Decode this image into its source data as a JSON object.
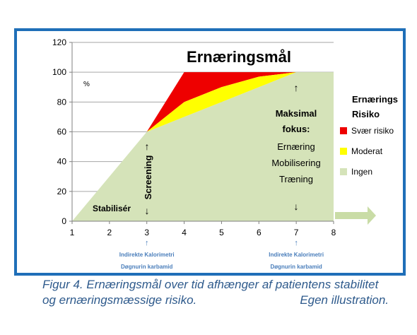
{
  "chart_data": {
    "type": "area",
    "title": "Ernæringsmål",
    "x_ticks": [
      "1",
      "2",
      "3",
      "4",
      "5",
      "6",
      "7",
      "8"
    ],
    "y_ticks": [
      "0",
      "20",
      "40",
      "60",
      "80",
      "100",
      "120"
    ],
    "xlim": [
      1,
      8
    ],
    "ylim": [
      0,
      120
    ],
    "unit_label": "%",
    "grid": "horizontal",
    "series": [
      {
        "name": "Ingen",
        "x": [
          1,
          3,
          4,
          5,
          6,
          7,
          8
        ],
        "y": [
          0,
          60,
          70,
          80,
          90,
          100,
          100
        ],
        "color": "#d5e3b9"
      },
      {
        "name": "Moderat",
        "x": [
          3,
          4,
          5,
          6,
          7,
          8
        ],
        "y": [
          60,
          80,
          90,
          97,
          100,
          100
        ],
        "color": "#ffff00"
      },
      {
        "name": "Svær risiko",
        "x": [
          3,
          4,
          5,
          6,
          7,
          8
        ],
        "y": [
          60,
          100,
          100,
          100,
          100,
          100
        ],
        "color": "#ee0000"
      }
    ],
    "legend": {
      "title_line1": "Ernærings",
      "title_line2": "Risiko",
      "placement": "right",
      "items": [
        {
          "label": "Svær risiko",
          "color": "#ee0000"
        },
        {
          "label": "Moderat",
          "color": "#ffff00"
        },
        {
          "label": "Ingen",
          "color": "#d5e3b9"
        }
      ]
    },
    "annotations": {
      "stabiliser": "Stabilisér",
      "screening": "Screening",
      "focus_line1": "Maksimal",
      "focus_line2": "fokus:",
      "focus_items": [
        "Ernæring",
        "Mobilisering",
        "Træning"
      ],
      "up_arrow": "↑",
      "down_arrow": "↓",
      "below_axis": [
        {
          "at_x": 3,
          "line1": "Indirekte Kalorimetri",
          "line2": "Døgnurin karbamid"
        },
        {
          "at_x": 7,
          "line1": "Indirekte Kalorimetri",
          "line2": "Døgnurin karbamid"
        }
      ]
    }
  },
  "caption": {
    "line1": "Figur 4. Ernæringsmål over tid afhænger af patientens stabilitet",
    "line2_left": "og ernæringsmæssige risiko.",
    "line2_right": "Egen illustration."
  },
  "colors": {
    "frame": "#1f6fb8",
    "caption": "#2e5a8c",
    "annotation_blue": "#4a7ebb",
    "arrow_green": "#c9dca6"
  }
}
